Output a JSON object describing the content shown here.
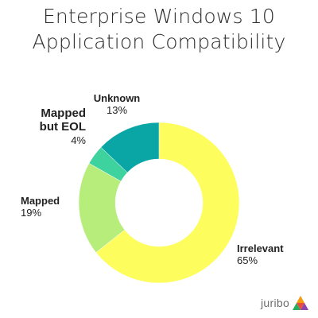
{
  "title_lines": [
    "Enterprise Windows 10",
    "Application Compatibility"
  ],
  "chart_data": {
    "type": "pie",
    "donut": true,
    "slices": [
      {
        "name": "Irrelevant",
        "value": 65,
        "label": "65%",
        "color": "#fdfd5e"
      },
      {
        "name": "Mapped",
        "value": 19,
        "label": "19%",
        "color": "#b7ed7a"
      },
      {
        "name": "Mapped but EOL",
        "value": 4,
        "label": "4%",
        "color": "#3ed39e"
      },
      {
        "name": "Unknown",
        "value": 13,
        "label": "13%",
        "color": "#0aa5a5"
      }
    ]
  },
  "labels": {
    "unknown": {
      "name": "Unknown",
      "pct": "13%"
    },
    "mapped_eol": {
      "name_line1": "Mapped",
      "name_line2": "but EOL",
      "pct": "4%"
    },
    "mapped": {
      "name": "Mapped",
      "pct": "19%"
    },
    "irrelevant": {
      "name": "Irrelevant",
      "pct": "65%"
    }
  },
  "logo": {
    "text": "juribo",
    "icon": "juribo-triangle-logo"
  }
}
